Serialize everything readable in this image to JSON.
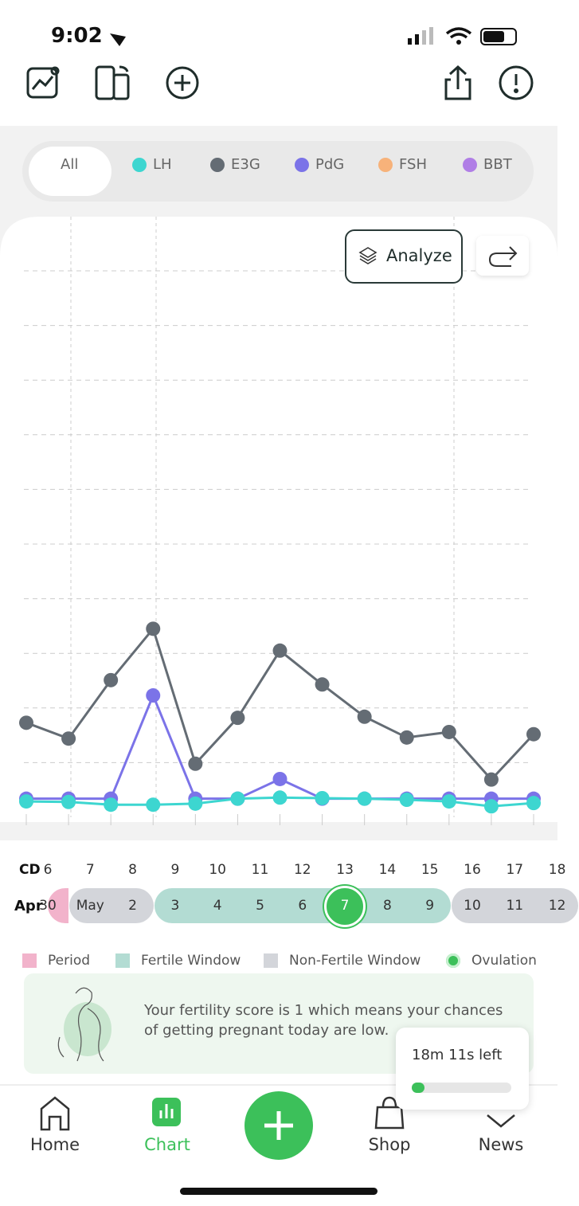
{
  "status_bar": {
    "time": "9:02"
  },
  "filters": {
    "all_label": "All"
  },
  "analyze_button": "Analyze",
  "chart_data": {
    "type": "line",
    "categories": [
      null,
      null,
      null,
      null,
      null,
      null,
      null,
      null,
      null,
      null,
      null,
      null,
      null
    ],
    "ylim": [
      0,
      10
    ],
    "grid_lines": [
      1,
      2,
      3,
      4,
      5,
      6,
      7,
      8,
      9,
      10
    ],
    "grid": true,
    "series": [
      {
        "name": "LH",
        "color": "#3dd6d0",
        "values": [
          0.29,
          0.28,
          0.23,
          0.23,
          0.25,
          0.34,
          0.36,
          0.35,
          0.34,
          0.32,
          0.29,
          0.2,
          0.26
        ]
      },
      {
        "name": "E3G",
        "color": "#646c74",
        "values": [
          1.73,
          1.44,
          2.51,
          3.45,
          0.98,
          1.82,
          3.05,
          2.43,
          1.84,
          1.46,
          1.56,
          0.69,
          1.52
        ]
      },
      {
        "name": "PdG",
        "color": "#7b73e8",
        "values": [
          0.34,
          0.34,
          0.34,
          2.23,
          0.34,
          0.34,
          0.7,
          0.34,
          0.34,
          0.34,
          0.34,
          0.34,
          0.34
        ]
      },
      {
        "name": "FSH",
        "color": "#f7b27a",
        "values": [
          null,
          null,
          null,
          null,
          null,
          null,
          null,
          null,
          null,
          null,
          null,
          null,
          null
        ]
      },
      {
        "name": "BBT",
        "color": "#b07ee6",
        "values": [
          null,
          null,
          null,
          null,
          null,
          null,
          null,
          null,
          null,
          null,
          null,
          null,
          null
        ]
      }
    ]
  },
  "calendar": {
    "cd_label": "CD",
    "month_label": "Apr",
    "days": [
      {
        "cd": 6,
        "date": 30,
        "phase": "period"
      },
      {
        "cd": 7,
        "date": "May",
        "phase": "non-fertile"
      },
      {
        "cd": 8,
        "date": 2,
        "phase": "non-fertile"
      },
      {
        "cd": 9,
        "date": 3,
        "phase": "fertile"
      },
      {
        "cd": 10,
        "date": 4,
        "phase": "fertile"
      },
      {
        "cd": 11,
        "date": 5,
        "phase": "fertile"
      },
      {
        "cd": 12,
        "date": 6,
        "phase": "fertile"
      },
      {
        "cd": 13,
        "date": 7,
        "phase": "fertile",
        "ovulation": true
      },
      {
        "cd": 14,
        "date": 8,
        "phase": "fertile"
      },
      {
        "cd": 15,
        "date": 9,
        "phase": "fertile"
      },
      {
        "cd": 16,
        "date": 10,
        "phase": "non-fertile"
      },
      {
        "cd": 17,
        "date": 11,
        "phase": "non-fertile"
      },
      {
        "cd": 18,
        "date": 12,
        "phase": "non-fertile"
      }
    ]
  },
  "legend": [
    {
      "label": "Period",
      "color": "#f2b3cb",
      "shape": "square"
    },
    {
      "label": "Fertile Window",
      "color": "#b3dcd3",
      "shape": "square"
    },
    {
      "label": "Non-Fertile Window",
      "color": "#d3d5da",
      "shape": "square"
    },
    {
      "label": "Ovulation",
      "color": "#3cc05a",
      "shape": "circle"
    }
  ],
  "fertility_message": "Your fertility score is 1 which means your chances of getting pregnant today are low.",
  "timer": {
    "text": "18m 11s left",
    "progress": 13
  },
  "nav": [
    {
      "label": "Home"
    },
    {
      "label": "Chart",
      "active": true
    },
    {
      "label": "Shop"
    },
    {
      "label": "News"
    }
  ]
}
